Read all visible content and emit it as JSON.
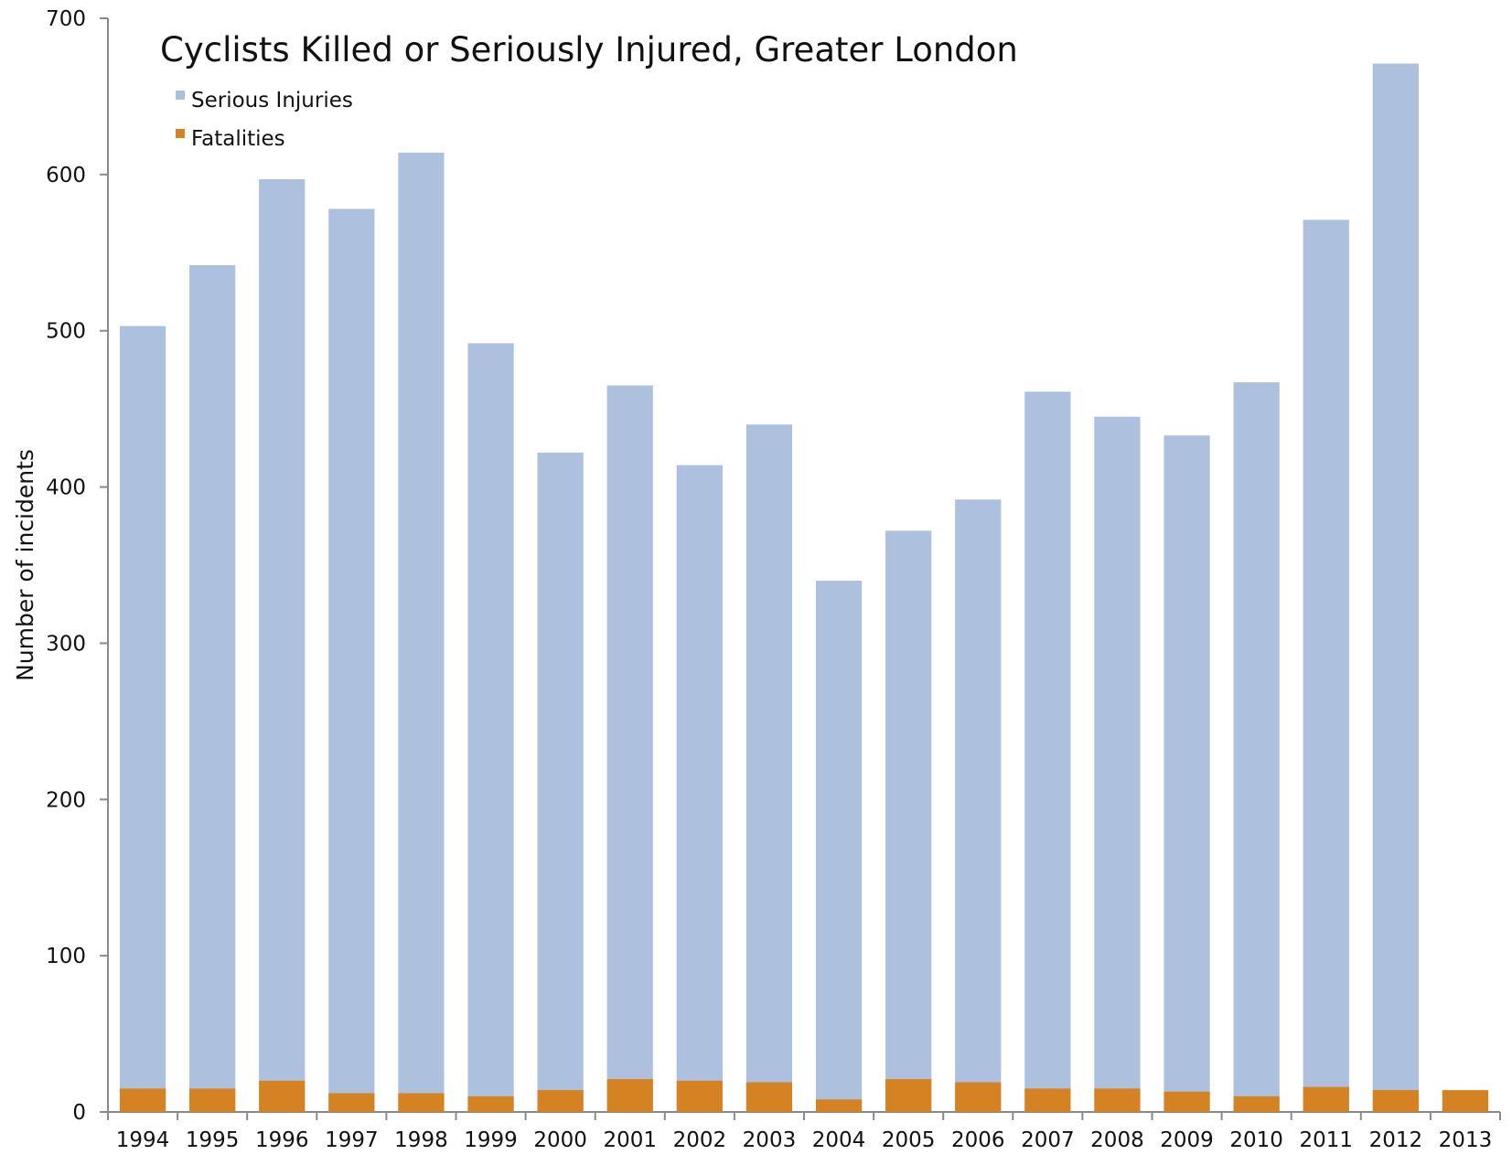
{
  "chart_data": {
    "type": "bar",
    "title": "Cyclists Killed or Seriously Injured, Greater London",
    "xlabel": "",
    "ylabel": "Number of incidents",
    "ylim": [
      0,
      700
    ],
    "yticks": [
      "0",
      "100",
      "200",
      "300",
      "400",
      "500",
      "600",
      "700"
    ],
    "categories": [
      "1994",
      "1995",
      "1996",
      "1997",
      "1998",
      "1999",
      "2000",
      "2001",
      "2002",
      "2003",
      "2004",
      "2005",
      "2006",
      "2007",
      "2008",
      "2009",
      "2010",
      "2011",
      "2012",
      "2013"
    ],
    "series": [
      {
        "name": "Serious Injuries",
        "color": "#adc0de",
        "values": [
          503,
          542,
          597,
          578,
          614,
          492,
          422,
          465,
          414,
          440,
          340,
          372,
          392,
          461,
          445,
          433,
          467,
          571,
          671,
          null
        ]
      },
      {
        "name": "Fatalities",
        "color": "#d58223",
        "values": [
          15,
          15,
          20,
          12,
          12,
          10,
          14,
          21,
          20,
          19,
          8,
          21,
          19,
          15,
          15,
          13,
          10,
          16,
          14,
          14
        ]
      }
    ],
    "grid": false,
    "legend_position": "top-left"
  }
}
